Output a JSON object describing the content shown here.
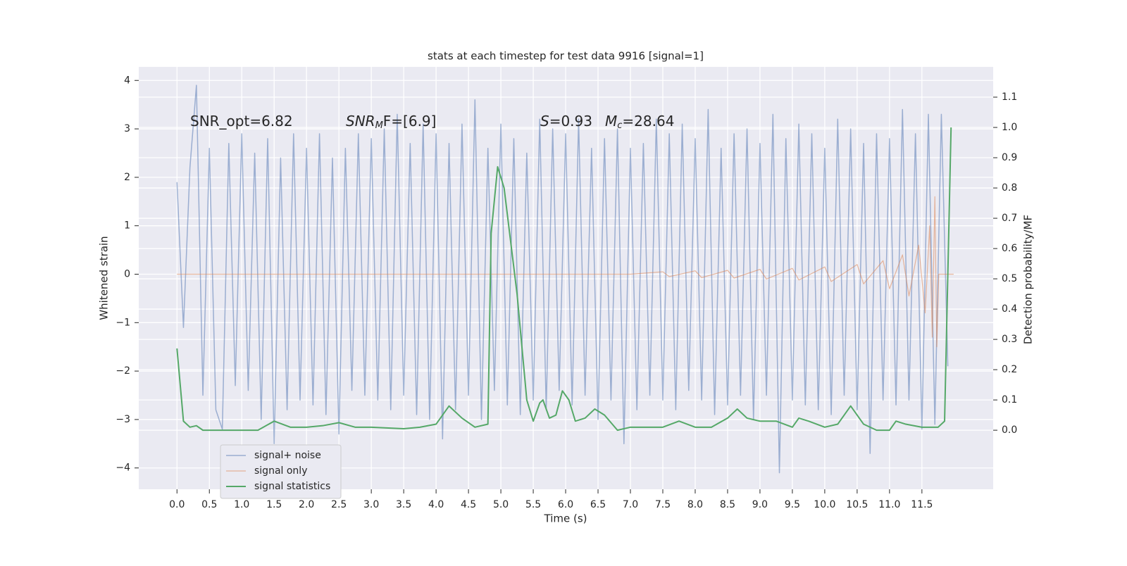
{
  "chart_data": {
    "type": "line",
    "title": "stats at each timestep for test data 9916 [signal=1]",
    "xlabel": "Time (s)",
    "ylabel": "Whitened strain",
    "y2label": "Detection probability/MF",
    "xlim": [
      -0.59,
      12.6
    ],
    "ylim": [
      -4.44,
      4.28
    ],
    "y2lim": [
      -0.195,
      1.2
    ],
    "xticks": [
      {
        "value": 0,
        "label": "0.0"
      },
      0.5,
      {
        "value": 1,
        "label": "1.0"
      },
      1.5,
      {
        "value": 2,
        "label": "2.0"
      },
      2.5,
      {
        "value": 3,
        "label": "3.0"
      },
      3.5,
      {
        "value": 4,
        "label": "4.0"
      },
      4.5,
      {
        "value": 5,
        "label": "5.0"
      },
      5.5,
      {
        "value": 6,
        "label": "6.0"
      },
      6.5,
      {
        "value": 7,
        "label": "7.0"
      },
      7.5,
      {
        "value": 8,
        "label": "8.0"
      },
      8.5,
      {
        "value": 9,
        "label": "9.0"
      },
      9.5,
      {
        "value": 10,
        "label": "10.0"
      },
      10.5,
      {
        "value": 11,
        "label": "11.0"
      },
      11.5
    ],
    "yticks": [
      {
        "value": -4,
        "label": "−4"
      },
      {
        "value": -3,
        "label": "−3"
      },
      {
        "value": -2,
        "label": "−2"
      },
      {
        "value": -1,
        "label": "−1"
      },
      0,
      1,
      2,
      3,
      4
    ],
    "y2ticks": [
      {
        "value": 0,
        "label": "0.0"
      },
      0.1,
      0.2,
      0.3,
      0.4,
      0.5,
      0.6,
      0.7,
      0.8,
      0.9,
      {
        "value": 1,
        "label": "1.0"
      },
      1.1
    ],
    "grid": true,
    "legend": "lower left",
    "annotations": [
      {
        "parts": [
          "SNR_opt=6.82"
        ]
      },
      {
        "parts": [
          "SNR",
          "M",
          "F=[6.9]"
        ]
      },
      {
        "parts": [
          "S",
          "=0.93",
          "M",
          "c",
          "=28.64"
        ]
      }
    ],
    "series": [
      {
        "name": "signal+ noise",
        "color": "#4c72b0",
        "axis": "y",
        "x": [
          0.0,
          0.1,
          0.2,
          0.3,
          0.4,
          0.5,
          0.6,
          0.7,
          0.8,
          0.9,
          1.0,
          1.1,
          1.2,
          1.3,
          1.4,
          1.5,
          1.6,
          1.7,
          1.8,
          1.9,
          2.0,
          2.1,
          2.2,
          2.3,
          2.4,
          2.5,
          2.6,
          2.7,
          2.8,
          2.9,
          3.0,
          3.1,
          3.2,
          3.3,
          3.4,
          3.5,
          3.6,
          3.7,
          3.8,
          3.9,
          4.0,
          4.1,
          4.2,
          4.3,
          4.4,
          4.5,
          4.6,
          4.7,
          4.8,
          4.9,
          5.0,
          5.1,
          5.2,
          5.3,
          5.4,
          5.5,
          5.6,
          5.7,
          5.8,
          5.9,
          6.0,
          6.1,
          6.2,
          6.3,
          6.4,
          6.5,
          6.6,
          6.7,
          6.8,
          6.9,
          7.0,
          7.1,
          7.2,
          7.3,
          7.4,
          7.5,
          7.6,
          7.7,
          7.8,
          7.9,
          8.0,
          8.1,
          8.2,
          8.3,
          8.4,
          8.5,
          8.6,
          8.7,
          8.8,
          8.9,
          9.0,
          9.1,
          9.2,
          9.3,
          9.4,
          9.5,
          9.6,
          9.7,
          9.8,
          9.9,
          10.0,
          10.1,
          10.2,
          10.3,
          10.4,
          10.5,
          10.6,
          10.7,
          10.8,
          10.9,
          11.0,
          11.1,
          11.2,
          11.3,
          11.4,
          11.5,
          11.6,
          11.7,
          11.8,
          11.9
        ],
        "values": [
          1.9,
          -1.1,
          2.2,
          3.9,
          -2.5,
          2.6,
          -2.8,
          -3.2,
          2.7,
          -2.3,
          2.9,
          -2.4,
          2.5,
          -3.0,
          2.8,
          -3.5,
          2.4,
          -2.8,
          2.9,
          -2.6,
          2.6,
          -2.7,
          2.9,
          -2.9,
          2.4,
          -3.3,
          2.6,
          -2.4,
          2.9,
          -2.5,
          2.8,
          -2.6,
          3.0,
          -2.8,
          3.3,
          -2.5,
          2.7,
          -2.9,
          3.1,
          -3.0,
          2.9,
          -3.4,
          2.7,
          -2.8,
          3.1,
          -2.5,
          3.6,
          -3.0,
          2.6,
          -2.4,
          3.1,
          -2.7,
          2.8,
          -2.9,
          2.5,
          -2.6,
          3.2,
          -2.8,
          3.0,
          -2.4,
          2.9,
          -2.7,
          3.2,
          -2.5,
          2.6,
          -3.0,
          2.8,
          -2.6,
          3.0,
          -3.5,
          2.6,
          -2.8,
          2.7,
          -2.5,
          3.2,
          -2.6,
          2.9,
          -2.8,
          3.1,
          -2.4,
          2.8,
          -2.6,
          3.4,
          -2.9,
          2.6,
          -2.7,
          2.9,
          -2.5,
          3.0,
          -3.0,
          2.7,
          -2.5,
          3.3,
          -4.1,
          2.8,
          -2.6,
          3.1,
          -2.7,
          2.9,
          -2.8,
          2.6,
          -2.9,
          3.2,
          -2.5,
          3.0,
          -2.8,
          2.7,
          -3.7,
          2.9,
          -2.6,
          2.8,
          -2.7,
          3.4,
          -2.6,
          2.9,
          -3.2,
          3.3,
          -3.1,
          3.3,
          -1.9
        ]
      },
      {
        "name": "signal only",
        "color": "#dd8452",
        "axis": "y",
        "x": [
          0.0,
          7.0,
          7.5,
          7.6,
          8.0,
          8.1,
          8.5,
          8.6,
          9.0,
          9.1,
          9.5,
          9.6,
          10.0,
          10.1,
          10.5,
          10.6,
          10.9,
          11.0,
          11.2,
          11.3,
          11.45,
          11.55,
          11.62,
          11.66,
          11.7,
          11.73,
          11.76,
          11.99
        ],
        "values": [
          0,
          0,
          0.05,
          -0.05,
          0.07,
          -0.07,
          0.08,
          -0.08,
          0.1,
          -0.1,
          0.12,
          -0.12,
          0.15,
          -0.15,
          0.2,
          -0.2,
          0.28,
          -0.3,
          0.4,
          -0.45,
          0.6,
          -0.8,
          1.0,
          -1.3,
          1.6,
          -1.5,
          0,
          0
        ]
      },
      {
        "name": "signal statistics",
        "color": "#55a868",
        "axis": "y2",
        "x": [
          0.0,
          0.1,
          0.2,
          0.3,
          0.4,
          0.5,
          0.75,
          1.0,
          1.25,
          1.5,
          1.75,
          2.0,
          2.25,
          2.5,
          2.75,
          3.0,
          3.5,
          3.75,
          4.0,
          4.2,
          4.4,
          4.6,
          4.8,
          4.85,
          4.95,
          5.05,
          5.25,
          5.4,
          5.5,
          5.6,
          5.65,
          5.75,
          5.85,
          5.95,
          6.05,
          6.15,
          6.3,
          6.45,
          6.6,
          6.8,
          7.0,
          7.25,
          7.5,
          7.75,
          8.0,
          8.25,
          8.5,
          8.65,
          8.8,
          9.0,
          9.25,
          9.5,
          9.6,
          9.75,
          10.0,
          10.2,
          10.4,
          10.6,
          10.8,
          11.0,
          11.1,
          11.25,
          11.5,
          11.75,
          11.85,
          11.95
        ],
        "values": [
          0.27,
          0.03,
          0.01,
          0.015,
          0,
          0,
          0,
          0,
          0,
          0.03,
          0.01,
          0.01,
          0.015,
          0.025,
          0.01,
          0.01,
          0.005,
          0.01,
          0.02,
          0.08,
          0.04,
          0.01,
          0.02,
          0.65,
          0.87,
          0.8,
          0.45,
          0.1,
          0.03,
          0.09,
          0.1,
          0.04,
          0.05,
          0.13,
          0.1,
          0.03,
          0.04,
          0.07,
          0.05,
          0,
          0.01,
          0.01,
          0.01,
          0.03,
          0.01,
          0.01,
          0.04,
          0.07,
          0.04,
          0.03,
          0.03,
          0.01,
          0.04,
          0.03,
          0.01,
          0.02,
          0.08,
          0.02,
          0,
          0,
          0.03,
          0.02,
          0.01,
          0.01,
          0.03,
          1.0
        ]
      }
    ]
  }
}
